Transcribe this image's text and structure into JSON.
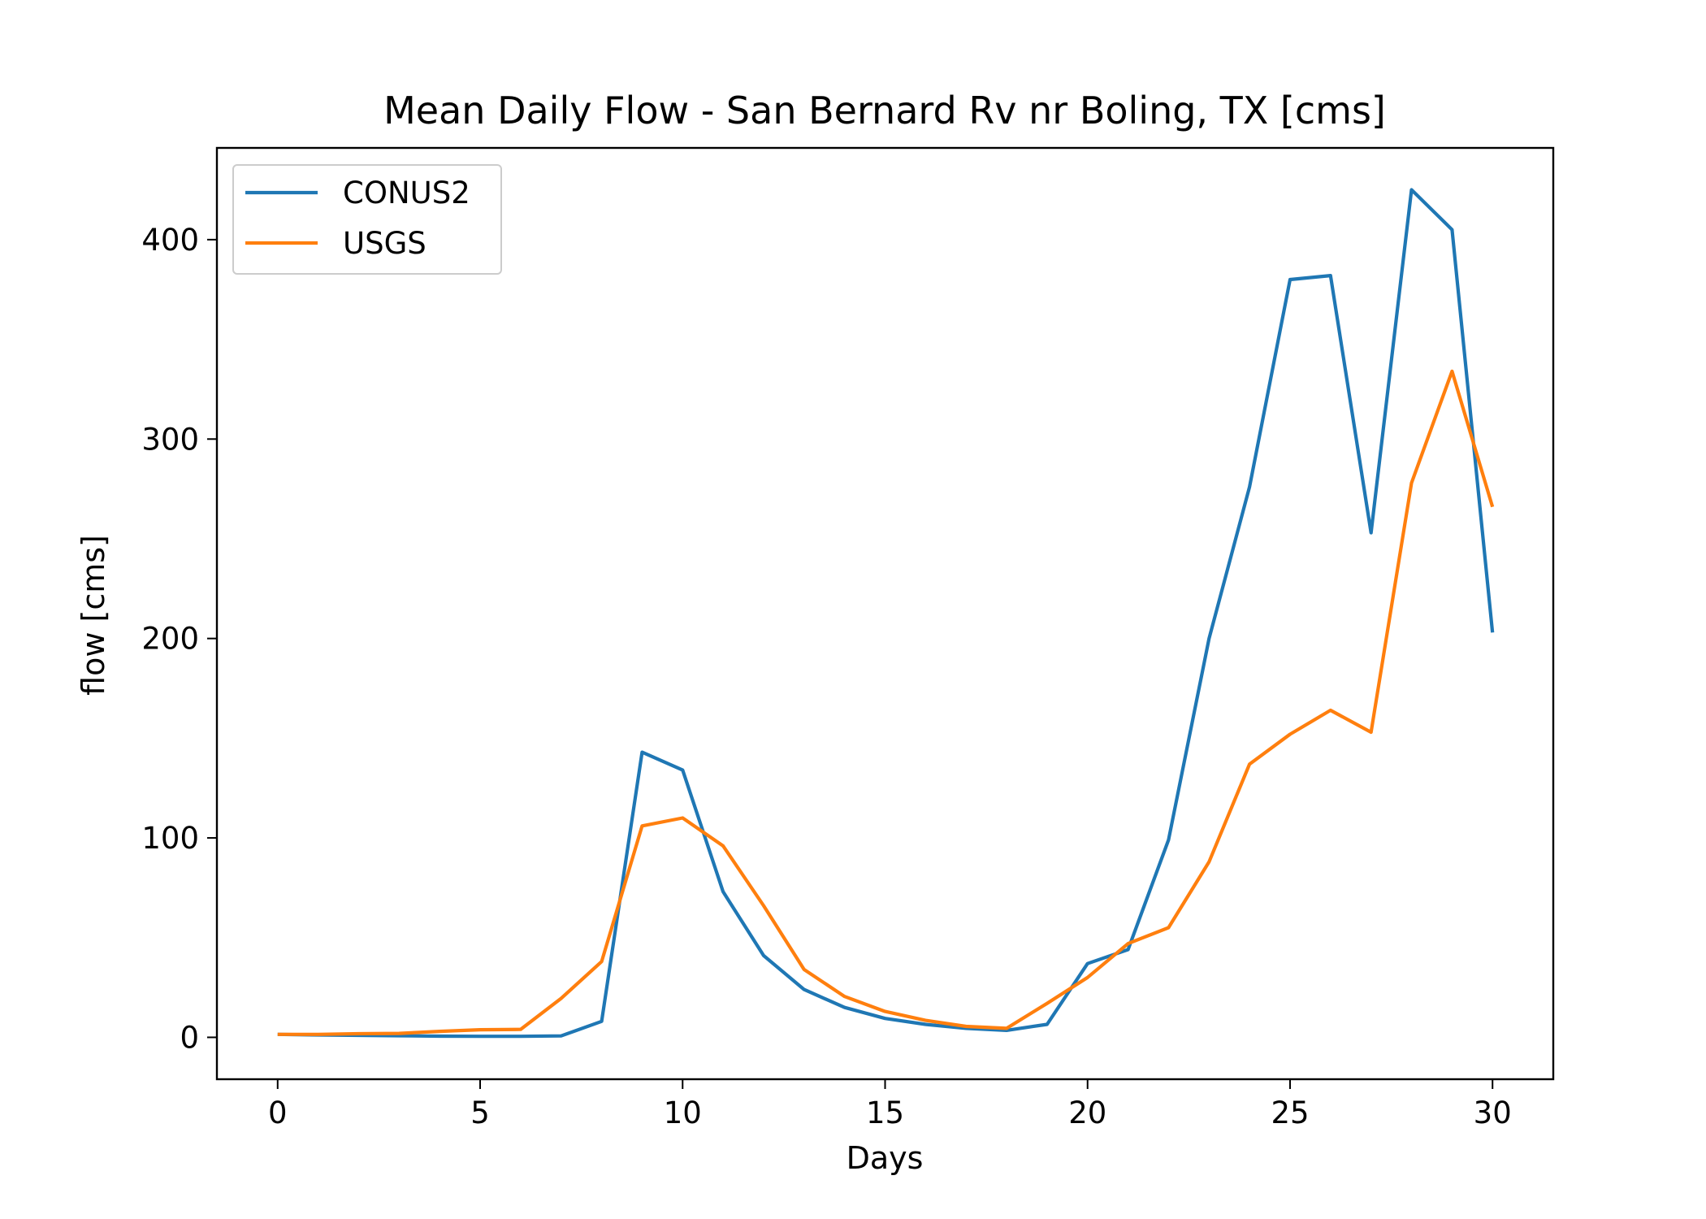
{
  "chart_data": {
    "type": "line",
    "title": "Mean Daily Flow - San Bernard Rv nr Boling, TX [cms]",
    "xlabel": "Days",
    "ylabel": "flow [cms]",
    "xlim": [
      -1.5,
      31.5
    ],
    "ylim": [
      -21,
      446
    ],
    "x_ticks": [
      0,
      5,
      10,
      15,
      20,
      25,
      30
    ],
    "y_ticks": [
      0,
      100,
      200,
      300,
      400
    ],
    "grid": false,
    "legend_position": "top-left",
    "x": [
      0,
      1,
      2,
      3,
      4,
      5,
      6,
      7,
      8,
      9,
      10,
      11,
      12,
      13,
      14,
      15,
      16,
      17,
      18,
      19,
      20,
      21,
      22,
      23,
      24,
      25,
      26,
      27,
      28,
      29,
      30
    ],
    "series": [
      {
        "name": "CONUS2",
        "color": "#1f77b4",
        "values": [
          1.5,
          1.2,
          1.0,
          0.8,
          0.6,
          0.5,
          0.5,
          0.7,
          8,
          143,
          134,
          73,
          41,
          24,
          15,
          9.5,
          6.5,
          4.5,
          3.5,
          6.5,
          37,
          44,
          99,
          200,
          276,
          380,
          382,
          253,
          425,
          405,
          203
        ]
      },
      {
        "name": "USGS",
        "color": "#ff7f0e",
        "values": [
          1.5,
          1.5,
          1.8,
          2,
          3,
          3.8,
          4,
          19.5,
          38,
          106,
          110,
          96,
          66,
          34,
          20.5,
          13,
          8.5,
          5.5,
          4.5,
          17,
          30,
          47,
          55,
          88,
          137,
          152,
          164,
          153,
          278,
          334,
          266
        ]
      }
    ]
  }
}
